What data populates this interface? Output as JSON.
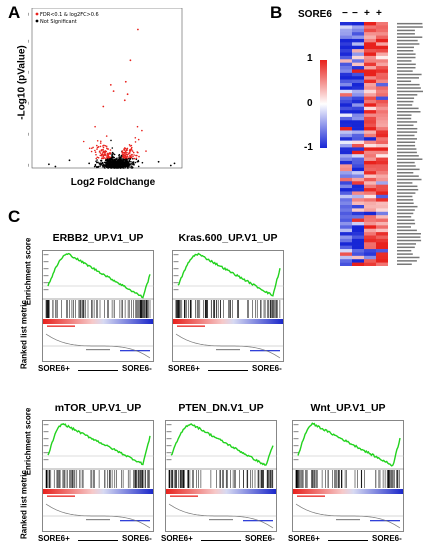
{
  "panels": {
    "a": "A",
    "b": "B",
    "c": "C"
  },
  "volcano": {
    "legend": [
      "FDR<0.1 & log2FC>0.6",
      "Not Significant"
    ],
    "legend_colors": [
      "#e8211c",
      "#000000"
    ],
    "ylabel": "-Log10 (pValue)",
    "xlabel": "Log2 FoldChange",
    "yticks": [
      "0",
      "10",
      "20",
      "30",
      "40",
      "50"
    ],
    "xticks": [
      "-8",
      "-4",
      "0",
      "4"
    ]
  },
  "heatmap": {
    "header": "SORE6",
    "group_signs": [
      "−",
      "−",
      "+",
      "+"
    ],
    "scale_ticks": [
      "1",
      "0",
      "-1"
    ],
    "colors": {
      "high": "#e8211c",
      "mid": "#ffffff",
      "low": "#1726d6"
    }
  },
  "gsea": {
    "ylabel_top": "Enrichment score",
    "ylabel_bottom": "Ranked list metric",
    "sore_pos": "SORE6+",
    "sore_neg": "SORE6-",
    "line_color": "#22d21e",
    "plots": [
      {
        "title": "ERBB2_UP.V1_UP"
      },
      {
        "title": "Kras.600_UP.V1_UP"
      },
      {
        "title": "mTOR_UP.V1_UP"
      },
      {
        "title": "PTEN_DN.V1_UP"
      },
      {
        "title": "Wnt_UP.V1_UP"
      }
    ]
  }
}
